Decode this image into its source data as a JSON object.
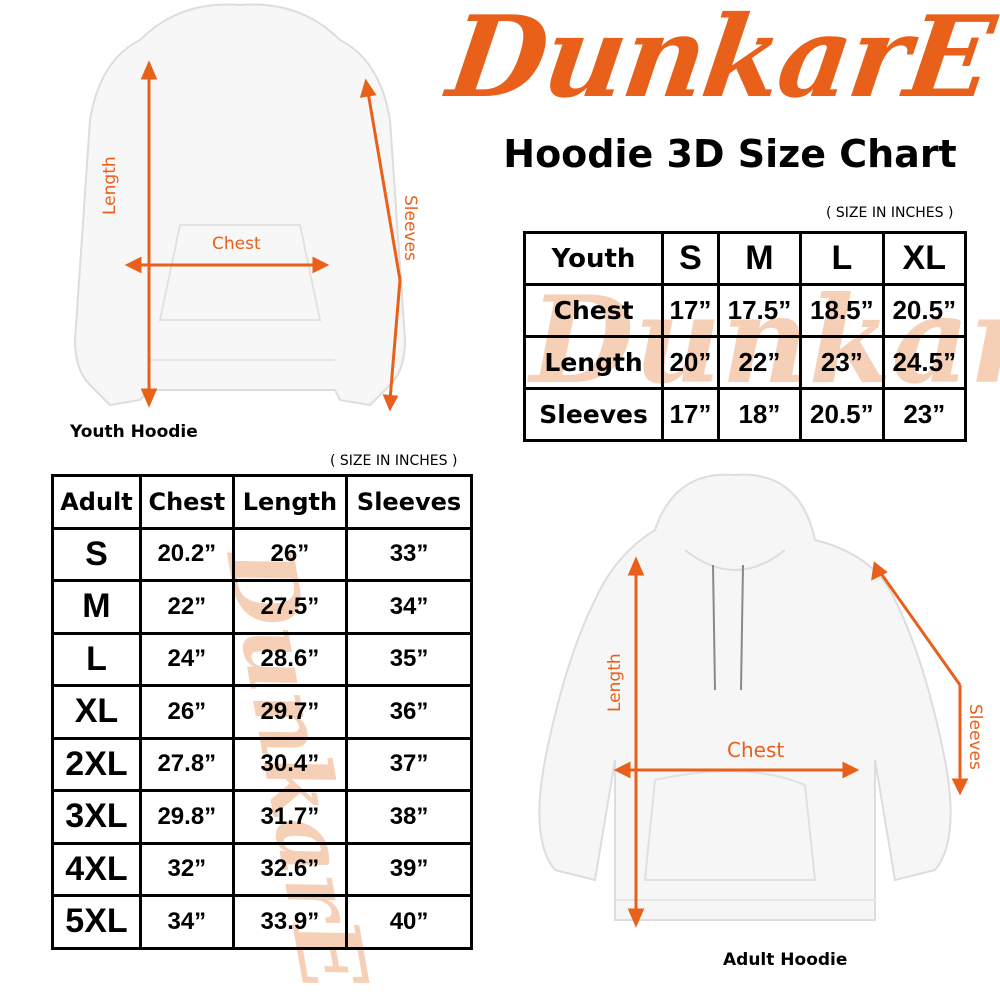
{
  "brand": {
    "logo_text": "DunkarE",
    "color": "#e8601a"
  },
  "title": "Hoodie 3D Size Chart",
  "youth": {
    "caption": "Youth Hoodie",
    "unit_note": "( SIZE IN INCHES )",
    "labels": {
      "length": "Length",
      "chest": "Chest",
      "sleeves": "Sleeves"
    },
    "table": {
      "header": [
        "Youth",
        "S",
        "M",
        "L",
        "XL"
      ],
      "rows": [
        [
          "Chest",
          "17”",
          "17.5”",
          "18.5”",
          "20.5”"
        ],
        [
          "Length",
          "20”",
          "22”",
          "23”",
          "24.5”"
        ],
        [
          "Sleeves",
          "17”",
          "18”",
          "20.5”",
          "23”"
        ]
      ]
    }
  },
  "adult": {
    "caption": "Adult Hoodie",
    "unit_note": "( SIZE IN INCHES )",
    "labels": {
      "length": "Length",
      "chest": "Chest",
      "sleeves": "Sleeves"
    },
    "table": {
      "header": [
        "Adult",
        "Chest",
        "Length",
        "Sleeves"
      ],
      "rows": [
        [
          "S",
          "20.2”",
          "26”",
          "33”"
        ],
        [
          "M",
          "22”",
          "27.5”",
          "34”"
        ],
        [
          "L",
          "24”",
          "28.6”",
          "35”"
        ],
        [
          "XL",
          "26”",
          "29.7”",
          "36”"
        ],
        [
          "2XL",
          "27.8”",
          "30.4”",
          "37”"
        ],
        [
          "3XL",
          "29.8”",
          "31.7”",
          "38”"
        ],
        [
          "4XL",
          "32”",
          "32.6”",
          "39”"
        ],
        [
          "5XL",
          "34”",
          "33.9”",
          "40”"
        ]
      ]
    }
  }
}
